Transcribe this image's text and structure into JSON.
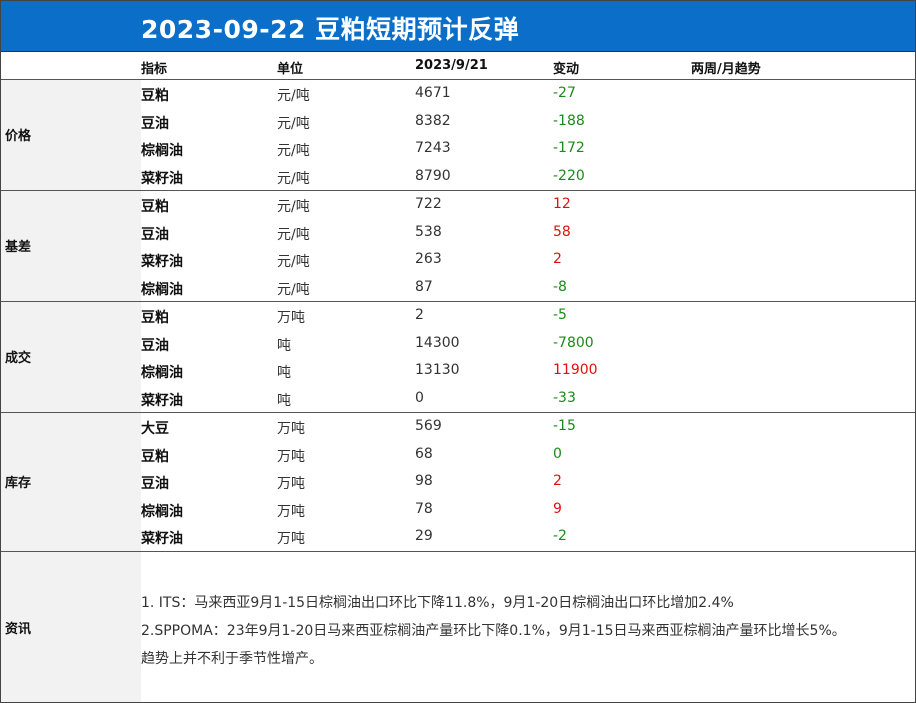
{
  "title": "2023-09-22  豆粕短期预计反弹",
  "headers": {
    "indicator": "指标",
    "unit": "单位",
    "date": "2023/9/21",
    "change": "变动",
    "trend": "两周/月趋势"
  },
  "sections": [
    {
      "label": "价格",
      "rows": [
        {
          "name": "豆粕",
          "unit": "元/吨",
          "value": "4671",
          "change": "-27",
          "dir": "neg"
        },
        {
          "name": "豆油",
          "unit": "元/吨",
          "value": "8382",
          "change": "-188",
          "dir": "neg"
        },
        {
          "name": "棕榈油",
          "unit": "元/吨",
          "value": "7243",
          "change": "-172",
          "dir": "neg"
        },
        {
          "name": "菜籽油",
          "unit": "元/吨",
          "value": "8790",
          "change": "-220",
          "dir": "neg"
        }
      ]
    },
    {
      "label": "基差",
      "rows": [
        {
          "name": "豆粕",
          "unit": "元/吨",
          "value": "722",
          "change": "12",
          "dir": "pos"
        },
        {
          "name": "豆油",
          "unit": "元/吨",
          "value": "538",
          "change": "58",
          "dir": "pos"
        },
        {
          "name": "菜籽油",
          "unit": "元/吨",
          "value": "263",
          "change": "2",
          "dir": "pos"
        },
        {
          "name": "棕榈油",
          "unit": "元/吨",
          "value": "87",
          "change": "-8",
          "dir": "neg"
        }
      ]
    },
    {
      "label": "成交",
      "rows": [
        {
          "name": "豆粕",
          "unit": "万吨",
          "value": "2",
          "change": "-5",
          "dir": "neg"
        },
        {
          "name": "豆油",
          "unit": "吨",
          "value": "14300",
          "change": "-7800",
          "dir": "neg"
        },
        {
          "name": "棕榈油",
          "unit": "吨",
          "value": "13130",
          "change": "11900",
          "dir": "pos"
        },
        {
          "name": "菜籽油",
          "unit": "吨",
          "value": "0",
          "change": "-33",
          "dir": "neg"
        }
      ]
    },
    {
      "label": "库存",
      "rows": [
        {
          "name": "大豆",
          "unit": "万吨",
          "value": "569",
          "change": "-15",
          "dir": "neg"
        },
        {
          "name": "豆粕",
          "unit": "万吨",
          "value": "68",
          "change": "0",
          "dir": "neg"
        },
        {
          "name": "豆油",
          "unit": "万吨",
          "value": "98",
          "change": "2",
          "dir": "pos"
        },
        {
          "name": "棕榈油",
          "unit": "万吨",
          "value": "78",
          "change": "9",
          "dir": "pos"
        },
        {
          "name": "菜籽油",
          "unit": "万吨",
          "value": "29",
          "change": "-2",
          "dir": "neg"
        }
      ]
    }
  ],
  "news": {
    "label": "资讯",
    "lines": [
      "1. ITS：马来西亚9月1-15日棕榈油出口环比下降11.8%，9月1-20日棕榈油出口环比增加2.4%",
      "2.SPPOMA：23年9月1-20日马来西亚棕榈油产量环比下降0.1%，9月1-15日马来西亚棕榈油产量环比增长5%。",
      "趋势上并不利于季节性增产。"
    ]
  },
  "colors": {
    "title_bg": "#0b6fc9",
    "label_bg": "#f2f2f2",
    "negative": "#1a8a1a",
    "positive": "#e01010"
  }
}
